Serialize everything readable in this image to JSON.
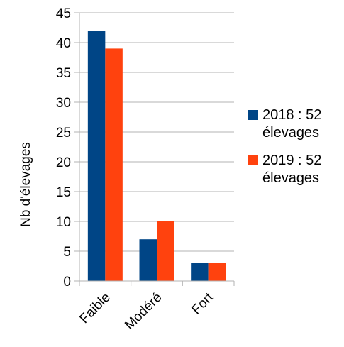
{
  "chart_data": {
    "type": "bar",
    "y_label": "Nb d'élevages",
    "categories": [
      "Faible",
      "Modéré",
      "Fort"
    ],
    "series": [
      {
        "name": "2018 : 52 élevages",
        "color": "#004586",
        "values": [
          42,
          7,
          3
        ]
      },
      {
        "name": "2019 : 52 élevages",
        "color": "#ff420e",
        "values": [
          39,
          10,
          3
        ]
      }
    ],
    "ylim": [
      0,
      45
    ],
    "yticks": [
      0,
      5,
      10,
      15,
      20,
      25,
      30,
      35,
      40,
      45
    ],
    "grid": true,
    "legend": "right"
  }
}
